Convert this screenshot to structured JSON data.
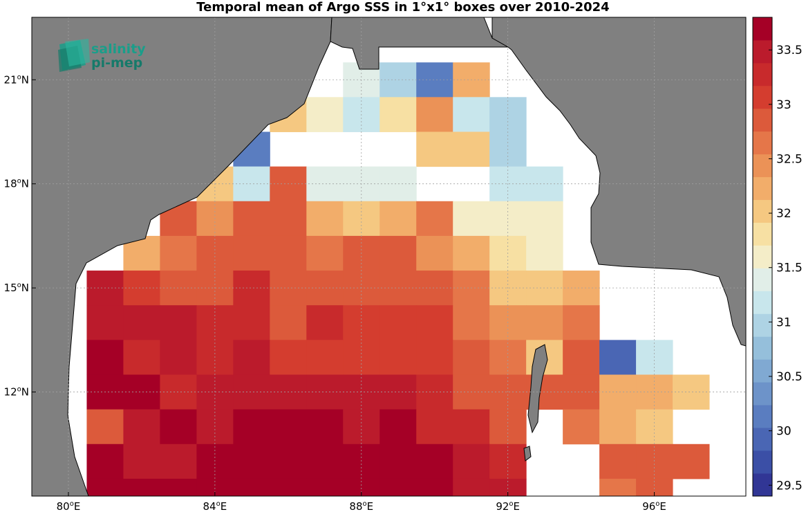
{
  "title": "Temporal mean of Argo SSS in 1°x1° boxes over 2010-2024",
  "logo": {
    "line1": "salinity",
    "line2": "pi-mep",
    "color": "#1a9e8a",
    "icon": "salinity-pimep-logo-icon"
  },
  "colors": {
    "land": "#808080",
    "ocean_nodata": "#ffffff",
    "grid": "#a0a0a0",
    "border": "#000000"
  },
  "chart_data": {
    "type": "heatmap",
    "title": "Temporal mean of Argo SSS in 1°x1° boxes over 2010-2024",
    "lon_range": [
      79,
      98.5
    ],
    "lat_range": [
      9,
      22.8
    ],
    "cell_size_deg": 1,
    "x_ticks": [
      {
        "value": 80,
        "deg": "80",
        "hemi": "E"
      },
      {
        "value": 84,
        "deg": "84",
        "hemi": "E"
      },
      {
        "value": 88,
        "deg": "88",
        "hemi": "E"
      },
      {
        "value": 92,
        "deg": "92",
        "hemi": "E"
      },
      {
        "value": 96,
        "deg": "96",
        "hemi": "E"
      }
    ],
    "y_ticks": [
      {
        "value": 12,
        "deg": "12",
        "hemi": "N"
      },
      {
        "value": 15,
        "deg": "15",
        "hemi": "N"
      },
      {
        "value": 18,
        "deg": "18",
        "hemi": "N"
      },
      {
        "value": 21,
        "deg": "21",
        "hemi": "N"
      }
    ],
    "colorbar": {
      "min": 29.4,
      "max": 33.8,
      "step": 0.2,
      "ticks": [
        "29.5",
        "30",
        "30.5",
        "31",
        "31.5",
        "32",
        "32.5",
        "33",
        "33.5"
      ],
      "colors": [
        "#313695",
        "#3b4fa6",
        "#4a66b4",
        "#5a7dc0",
        "#6d93c9",
        "#80a9d2",
        "#95bfdb",
        "#aed3e4",
        "#c8e6ec",
        "#e1eee8",
        "#f4edc8",
        "#f7e0a3",
        "#f5c881",
        "#f2ad6a",
        "#eb9257",
        "#e57649",
        "#dc5a3b",
        "#d43d2f",
        "#c82a2c",
        "#bb1b2c",
        "#a50026"
      ]
    },
    "cells": [
      {
        "lon": 88,
        "lat": 21,
        "sss": 31.3
      },
      {
        "lon": 89,
        "lat": 21,
        "sss": 30.9
      },
      {
        "lon": 90,
        "lat": 21,
        "sss": 30.1
      },
      {
        "lon": 91,
        "lat": 21,
        "sss": 32.1
      },
      {
        "lon": 86,
        "lat": 20,
        "sss": 31.9
      },
      {
        "lon": 87,
        "lat": 20,
        "sss": 31.5
      },
      {
        "lon": 88,
        "lat": 20,
        "sss": 31.1
      },
      {
        "lon": 89,
        "lat": 20,
        "sss": 31.6
      },
      {
        "lon": 90,
        "lat": 20,
        "sss": 32.2
      },
      {
        "lon": 91,
        "lat": 20,
        "sss": 31.0
      },
      {
        "lon": 92,
        "lat": 20,
        "sss": 30.9
      },
      {
        "lon": 85,
        "lat": 19,
        "sss": 30.0
      },
      {
        "lon": 90,
        "lat": 19,
        "sss": 31.8
      },
      {
        "lon": 91,
        "lat": 19,
        "sss": 31.8
      },
      {
        "lon": 92,
        "lat": 19,
        "sss": 30.9
      },
      {
        "lon": 84,
        "lat": 18,
        "sss": 31.8
      },
      {
        "lon": 85,
        "lat": 18,
        "sss": 31.1
      },
      {
        "lon": 86,
        "lat": 18,
        "sss": 32.7
      },
      {
        "lon": 87,
        "lat": 18,
        "sss": 31.3
      },
      {
        "lon": 88,
        "lat": 18,
        "sss": 31.3
      },
      {
        "lon": 89,
        "lat": 18,
        "sss": 31.3
      },
      {
        "lon": 92,
        "lat": 18,
        "sss": 31.1
      },
      {
        "lon": 93,
        "lat": 18,
        "sss": 31.1
      },
      {
        "lon": 83,
        "lat": 17,
        "sss": 32.7
      },
      {
        "lon": 84,
        "lat": 17,
        "sss": 32.2
      },
      {
        "lon": 85,
        "lat": 17,
        "sss": 32.6
      },
      {
        "lon": 86,
        "lat": 17,
        "sss": 32.6
      },
      {
        "lon": 87,
        "lat": 17,
        "sss": 32.0
      },
      {
        "lon": 88,
        "lat": 17,
        "sss": 31.8
      },
      {
        "lon": 89,
        "lat": 17,
        "sss": 32.0
      },
      {
        "lon": 90,
        "lat": 17,
        "sss": 32.4
      },
      {
        "lon": 91,
        "lat": 17,
        "sss": 31.5
      },
      {
        "lon": 92,
        "lat": 17,
        "sss": 31.5
      },
      {
        "lon": 93,
        "lat": 17,
        "sss": 31.5
      },
      {
        "lon": 82,
        "lat": 16,
        "sss": 32.0
      },
      {
        "lon": 83,
        "lat": 16,
        "sss": 32.4
      },
      {
        "lon": 84,
        "lat": 16,
        "sss": 32.6
      },
      {
        "lon": 85,
        "lat": 16,
        "sss": 32.8
      },
      {
        "lon": 86,
        "lat": 16,
        "sss": 32.6
      },
      {
        "lon": 87,
        "lat": 16,
        "sss": 32.4
      },
      {
        "lon": 88,
        "lat": 16,
        "sss": 32.6
      },
      {
        "lon": 89,
        "lat": 16,
        "sss": 32.6
      },
      {
        "lon": 90,
        "lat": 16,
        "sss": 32.2
      },
      {
        "lon": 91,
        "lat": 16,
        "sss": 32.0
      },
      {
        "lon": 92,
        "lat": 16,
        "sss": 31.6
      },
      {
        "lon": 93,
        "lat": 16,
        "sss": 31.5
      },
      {
        "lon": 81,
        "lat": 15,
        "sss": 33.2
      },
      {
        "lon": 82,
        "lat": 15,
        "sss": 32.9
      },
      {
        "lon": 83,
        "lat": 15,
        "sss": 32.6
      },
      {
        "lon": 84,
        "lat": 15,
        "sss": 32.8
      },
      {
        "lon": 85,
        "lat": 15,
        "sss": 33.0
      },
      {
        "lon": 86,
        "lat": 15,
        "sss": 32.8
      },
      {
        "lon": 87,
        "lat": 15,
        "sss": 32.8
      },
      {
        "lon": 88,
        "lat": 15,
        "sss": 32.8
      },
      {
        "lon": 89,
        "lat": 15,
        "sss": 32.8
      },
      {
        "lon": 90,
        "lat": 15,
        "sss": 32.6
      },
      {
        "lon": 91,
        "lat": 15,
        "sss": 32.4
      },
      {
        "lon": 92,
        "lat": 15,
        "sss": 31.8
      },
      {
        "lon": 93,
        "lat": 15,
        "sss": 31.8
      },
      {
        "lon": 94,
        "lat": 15,
        "sss": 32.0
      },
      {
        "lon": 81,
        "lat": 14,
        "sss": 33.2
      },
      {
        "lon": 82,
        "lat": 14,
        "sss": 33.2
      },
      {
        "lon": 83,
        "lat": 14,
        "sss": 33.2
      },
      {
        "lon": 84,
        "lat": 14,
        "sss": 33.0
      },
      {
        "lon": 85,
        "lat": 14,
        "sss": 33.0
      },
      {
        "lon": 86,
        "lat": 14,
        "sss": 32.8
      },
      {
        "lon": 87,
        "lat": 14,
        "sss": 33.0
      },
      {
        "lon": 88,
        "lat": 14,
        "sss": 32.9
      },
      {
        "lon": 89,
        "lat": 14,
        "sss": 32.9
      },
      {
        "lon": 90,
        "lat": 14,
        "sss": 32.9
      },
      {
        "lon": 91,
        "lat": 14,
        "sss": 32.4
      },
      {
        "lon": 92,
        "lat": 14,
        "sss": 32.2
      },
      {
        "lon": 93,
        "lat": 14,
        "sss": 32.2
      },
      {
        "lon": 94,
        "lat": 14,
        "sss": 32.4
      },
      {
        "lon": 81,
        "lat": 13,
        "sss": 33.4
      },
      {
        "lon": 82,
        "lat": 13,
        "sss": 33.0
      },
      {
        "lon": 83,
        "lat": 13,
        "sss": 33.2
      },
      {
        "lon": 84,
        "lat": 13,
        "sss": 33.0
      },
      {
        "lon": 85,
        "lat": 13,
        "sss": 33.2
      },
      {
        "lon": 86,
        "lat": 13,
        "sss": 32.9
      },
      {
        "lon": 87,
        "lat": 13,
        "sss": 32.9
      },
      {
        "lon": 88,
        "lat": 13,
        "sss": 32.9
      },
      {
        "lon": 89,
        "lat": 13,
        "sss": 32.9
      },
      {
        "lon": 90,
        "lat": 13,
        "sss": 32.9
      },
      {
        "lon": 91,
        "lat": 13,
        "sss": 32.6
      },
      {
        "lon": 92,
        "lat": 13,
        "sss": 32.4
      },
      {
        "lon": 93,
        "lat": 13,
        "sss": 31.9
      },
      {
        "lon": 94,
        "lat": 13,
        "sss": 32.6
      },
      {
        "lon": 95,
        "lat": 13,
        "sss": 29.9
      },
      {
        "lon": 96,
        "lat": 13,
        "sss": 31.1
      },
      {
        "lon": 81,
        "lat": 12,
        "sss": 33.6
      },
      {
        "lon": 82,
        "lat": 12,
        "sss": 33.4
      },
      {
        "lon": 83,
        "lat": 12,
        "sss": 33.0
      },
      {
        "lon": 84,
        "lat": 12,
        "sss": 33.2
      },
      {
        "lon": 85,
        "lat": 12,
        "sss": 33.2
      },
      {
        "lon": 86,
        "lat": 12,
        "sss": 33.2
      },
      {
        "lon": 87,
        "lat": 12,
        "sss": 33.2
      },
      {
        "lon": 88,
        "lat": 12,
        "sss": 33.2
      },
      {
        "lon": 89,
        "lat": 12,
        "sss": 33.2
      },
      {
        "lon": 90,
        "lat": 12,
        "sss": 33.0
      },
      {
        "lon": 91,
        "lat": 12,
        "sss": 32.8
      },
      {
        "lon": 92,
        "lat": 12,
        "sss": 32.6
      },
      {
        "lon": 93,
        "lat": 12,
        "sss": 32.8
      },
      {
        "lon": 94,
        "lat": 12,
        "sss": 32.6
      },
      {
        "lon": 95,
        "lat": 12,
        "sss": 32.1
      },
      {
        "lon": 96,
        "lat": 12,
        "sss": 32.1
      },
      {
        "lon": 97,
        "lat": 12,
        "sss": 31.9
      },
      {
        "lon": 81,
        "lat": 11,
        "sss": 32.8
      },
      {
        "lon": 82,
        "lat": 11,
        "sss": 33.2
      },
      {
        "lon": 83,
        "lat": 11,
        "sss": 33.4
      },
      {
        "lon": 84,
        "lat": 11,
        "sss": 33.2
      },
      {
        "lon": 85,
        "lat": 11,
        "sss": 33.4
      },
      {
        "lon": 86,
        "lat": 11,
        "sss": 33.4
      },
      {
        "lon": 87,
        "lat": 11,
        "sss": 33.7
      },
      {
        "lon": 88,
        "lat": 11,
        "sss": 33.2
      },
      {
        "lon": 89,
        "lat": 11,
        "sss": 33.4
      },
      {
        "lon": 90,
        "lat": 11,
        "sss": 33.0
      },
      {
        "lon": 91,
        "lat": 11,
        "sss": 33.0
      },
      {
        "lon": 92,
        "lat": 11,
        "sss": 32.8
      },
      {
        "lon": 94,
        "lat": 11,
        "sss": 32.4
      },
      {
        "lon": 95,
        "lat": 11,
        "sss": 32.1
      },
      {
        "lon": 96,
        "lat": 11,
        "sss": 31.9
      },
      {
        "lon": 81,
        "lat": 10,
        "sss": 33.4
      },
      {
        "lon": 82,
        "lat": 10,
        "sss": 33.2
      },
      {
        "lon": 83,
        "lat": 10,
        "sss": 33.2
      },
      {
        "lon": 84,
        "lat": 10,
        "sss": 33.6
      },
      {
        "lon": 85,
        "lat": 10,
        "sss": 33.4
      },
      {
        "lon": 86,
        "lat": 10,
        "sss": 33.4
      },
      {
        "lon": 87,
        "lat": 10,
        "sss": 33.4
      },
      {
        "lon": 88,
        "lat": 10,
        "sss": 33.4
      },
      {
        "lon": 89,
        "lat": 10,
        "sss": 33.4
      },
      {
        "lon": 90,
        "lat": 10,
        "sss": 33.4
      },
      {
        "lon": 91,
        "lat": 10,
        "sss": 33.2
      },
      {
        "lon": 92,
        "lat": 10,
        "sss": 33.0
      },
      {
        "lon": 95,
        "lat": 10,
        "sss": 32.6
      },
      {
        "lon": 96,
        "lat": 10,
        "sss": 32.8
      },
      {
        "lon": 97,
        "lat": 10,
        "sss": 32.6
      },
      {
        "lon": 81,
        "lat": 9,
        "sss": 33.6
      },
      {
        "lon": 82,
        "lat": 9,
        "sss": 33.4
      },
      {
        "lon": 83,
        "lat": 9,
        "sss": 33.4
      },
      {
        "lon": 84,
        "lat": 9,
        "sss": 33.6
      },
      {
        "lon": 85,
        "lat": 9,
        "sss": 33.6
      },
      {
        "lon": 86,
        "lat": 9,
        "sss": 33.6
      },
      {
        "lon": 87,
        "lat": 9,
        "sss": 33.6
      },
      {
        "lon": 88,
        "lat": 9,
        "sss": 33.4
      },
      {
        "lon": 89,
        "lat": 9,
        "sss": 33.4
      },
      {
        "lon": 90,
        "lat": 9,
        "sss": 33.4
      },
      {
        "lon": 91,
        "lat": 9,
        "sss": 33.2
      },
      {
        "lon": 92,
        "lat": 9,
        "sss": 33.2
      },
      {
        "lon": 95,
        "lat": 9,
        "sss": 32.4
      },
      {
        "lon": 96,
        "lat": 9,
        "sss": 32.6
      }
    ]
  }
}
